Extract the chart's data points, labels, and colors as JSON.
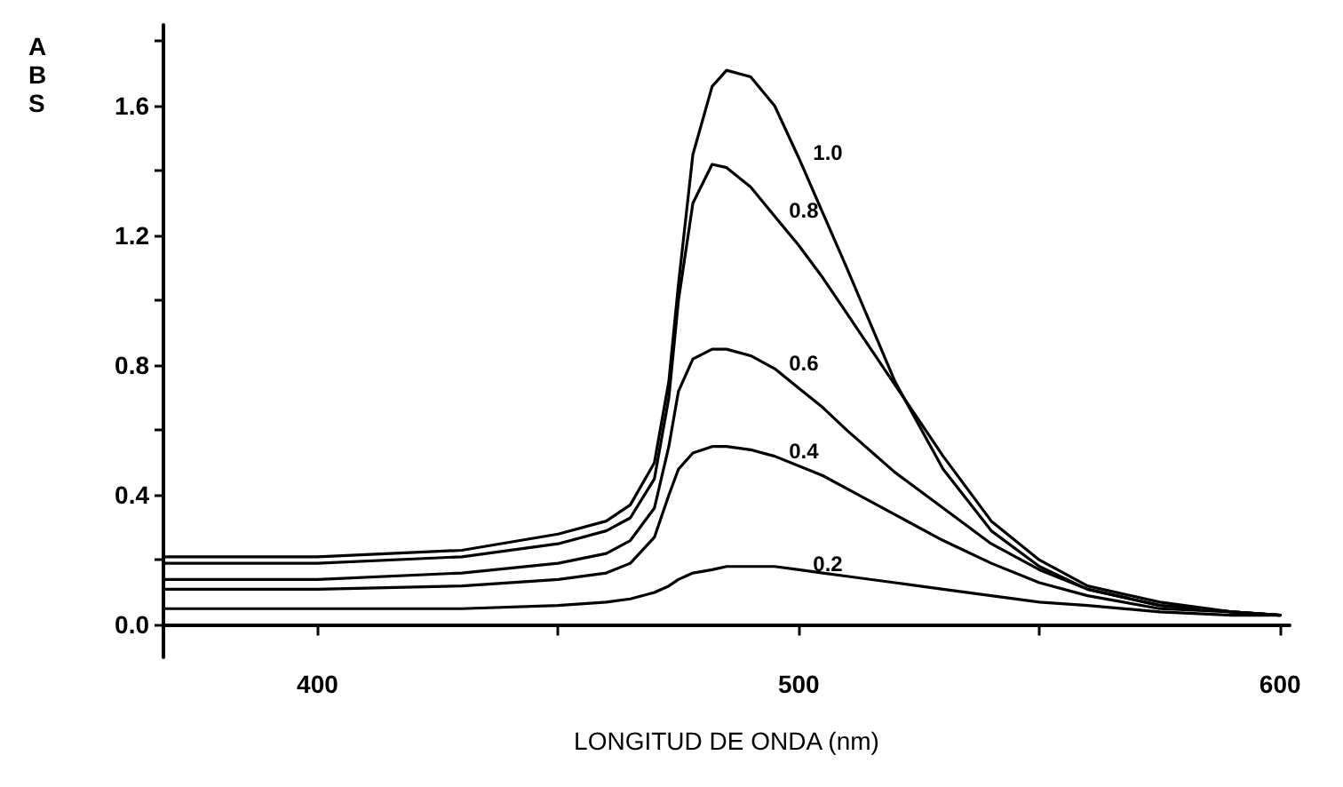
{
  "chart_data": {
    "type": "line",
    "xlabel": "LONGITUD DE ONDA (nm)",
    "ylabel": "ABS",
    "x": [
      368,
      400,
      430,
      450,
      460,
      465,
      470,
      473,
      475,
      478,
      482,
      485,
      490,
      495,
      500,
      505,
      510,
      520,
      530,
      540,
      550,
      560,
      575,
      590,
      600
    ],
    "series": [
      {
        "name": "1.0",
        "color": "#000000",
        "values": [
          0.21,
          0.21,
          0.23,
          0.28,
          0.32,
          0.37,
          0.5,
          0.75,
          1.05,
          1.45,
          1.66,
          1.71,
          1.69,
          1.6,
          1.44,
          1.27,
          1.1,
          0.75,
          0.48,
          0.29,
          0.18,
          0.11,
          0.06,
          0.04,
          0.03
        ]
      },
      {
        "name": "0.8",
        "color": "#000000",
        "values": [
          0.19,
          0.19,
          0.21,
          0.25,
          0.29,
          0.33,
          0.45,
          0.7,
          1.0,
          1.3,
          1.42,
          1.41,
          1.35,
          1.26,
          1.17,
          1.07,
          0.96,
          0.74,
          0.52,
          0.32,
          0.2,
          0.12,
          0.07,
          0.04,
          0.03
        ]
      },
      {
        "name": "0.6",
        "color": "#000000",
        "values": [
          0.14,
          0.14,
          0.16,
          0.19,
          0.22,
          0.26,
          0.36,
          0.55,
          0.72,
          0.82,
          0.85,
          0.85,
          0.83,
          0.79,
          0.73,
          0.67,
          0.6,
          0.47,
          0.36,
          0.25,
          0.17,
          0.11,
          0.06,
          0.04,
          0.03
        ]
      },
      {
        "name": "0.4",
        "color": "#000000",
        "values": [
          0.11,
          0.11,
          0.12,
          0.14,
          0.16,
          0.19,
          0.27,
          0.4,
          0.48,
          0.53,
          0.55,
          0.55,
          0.54,
          0.52,
          0.49,
          0.46,
          0.42,
          0.34,
          0.26,
          0.19,
          0.13,
          0.09,
          0.05,
          0.04,
          0.03
        ]
      },
      {
        "name": "0.2",
        "color": "#000000",
        "values": [
          0.05,
          0.05,
          0.05,
          0.06,
          0.07,
          0.08,
          0.1,
          0.12,
          0.14,
          0.16,
          0.17,
          0.18,
          0.18,
          0.18,
          0.17,
          0.16,
          0.15,
          0.13,
          0.11,
          0.09,
          0.07,
          0.06,
          0.04,
          0.03,
          0.03
        ]
      }
    ],
    "xlim": [
      368,
      602
    ],
    "xticks": [
      400,
      {
        "value": 450,
        "label": null
      },
      500,
      {
        "value": 550,
        "label": null
      },
      600
    ],
    "ylim": [
      -0.1,
      1.85
    ],
    "yticks": [
      {
        "value": 0,
        "label": "0.0"
      },
      {
        "value": 0.2,
        "label": null
      },
      {
        "value": 0.4,
        "label": "0.4"
      },
      {
        "value": 0.6,
        "label": null
      },
      {
        "value": 0.8,
        "label": "0.8"
      },
      {
        "value": 1.0,
        "label": null
      },
      {
        "value": 1.2,
        "label": "1.2"
      },
      {
        "value": 1.4,
        "label": null
      },
      {
        "value": 1.6,
        "label": "1.6"
      },
      {
        "value": 1.8,
        "label": null
      }
    ],
    "grid": false,
    "legend": false,
    "marker": "none",
    "line_style": "solid"
  }
}
